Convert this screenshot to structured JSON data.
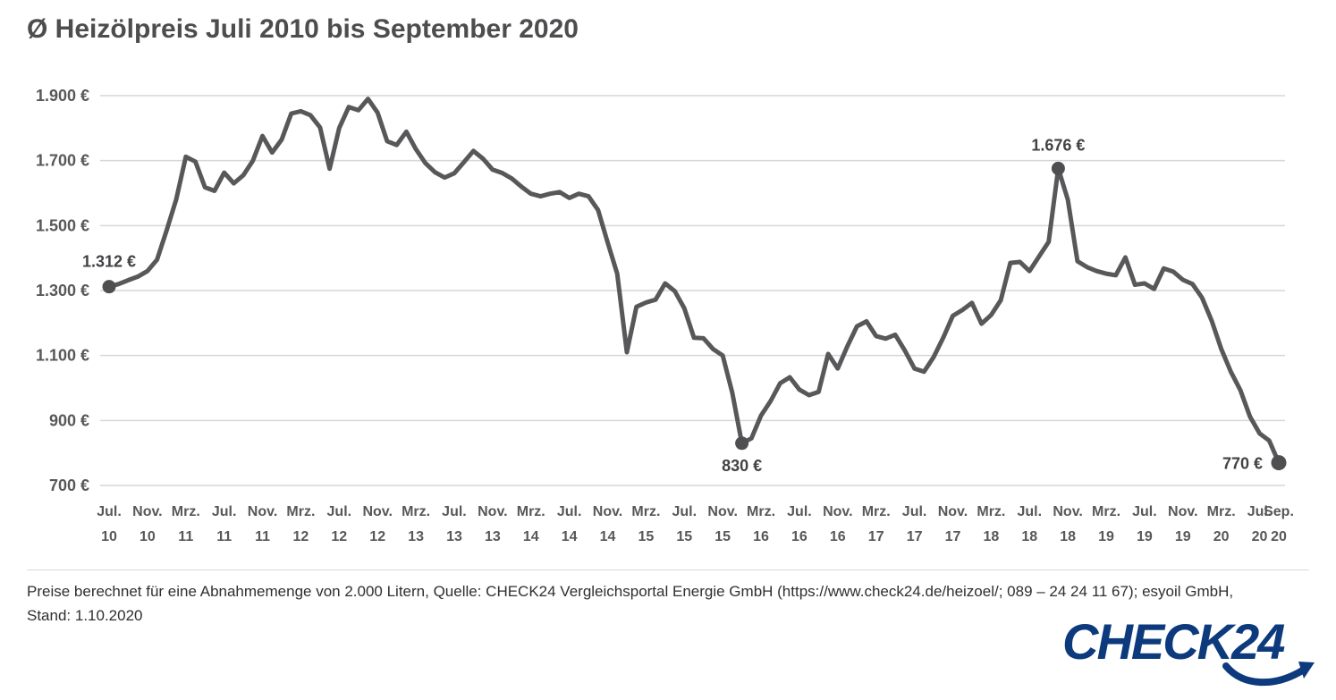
{
  "header": {
    "title": "Ø Heizölpreis Juli 2010 bis September 2020"
  },
  "chart_data": {
    "type": "line",
    "title": "Ø Heizölpreis Juli 2010 bis September 2020",
    "unit": "€",
    "x_monthly_from": "Juli 2010",
    "x_monthly_to": "September 2020",
    "ylim": [
      700,
      1900
    ],
    "y_tick_step": 200,
    "grid": true,
    "legend": false,
    "line_color": "#58585a",
    "values": [
      1312,
      1320,
      1332,
      1343,
      1360,
      1395,
      1485,
      1580,
      1712,
      1697,
      1618,
      1607,
      1663,
      1630,
      1655,
      1700,
      1776,
      1725,
      1765,
      1845,
      1852,
      1840,
      1802,
      1675,
      1800,
      1865,
      1855,
      1890,
      1848,
      1760,
      1748,
      1789,
      1735,
      1692,
      1664,
      1648,
      1661,
      1695,
      1730,
      1706,
      1672,
      1662,
      1645,
      1620,
      1598,
      1590,
      1598,
      1603,
      1585,
      1598,
      1590,
      1548,
      1448,
      1352,
      1110,
      1250,
      1263,
      1272,
      1322,
      1298,
      1245,
      1155,
      1153,
      1120,
      1100,
      985,
      830,
      845,
      915,
      960,
      1015,
      1033,
      995,
      978,
      988,
      1105,
      1060,
      1128,
      1190,
      1205,
      1160,
      1152,
      1164,
      1115,
      1060,
      1050,
      1095,
      1155,
      1222,
      1240,
      1262,
      1198,
      1225,
      1270,
      1385,
      1388,
      1360,
      1405,
      1450,
      1676,
      1580,
      1390,
      1372,
      1360,
      1352,
      1347,
      1402,
      1318,
      1322,
      1305,
      1368,
      1358,
      1333,
      1320,
      1278,
      1207,
      1120,
      1050,
      993,
      912,
      860,
      838,
      770
    ],
    "x_ticks": [
      {
        "index": 0,
        "month": "Jul.",
        "year": "10"
      },
      {
        "index": 4,
        "month": "Nov.",
        "year": "10"
      },
      {
        "index": 8,
        "month": "Mrz.",
        "year": "11"
      },
      {
        "index": 12,
        "month": "Jul.",
        "year": "11"
      },
      {
        "index": 16,
        "month": "Nov.",
        "year": "11"
      },
      {
        "index": 20,
        "month": "Mrz.",
        "year": "12"
      },
      {
        "index": 24,
        "month": "Jul.",
        "year": "12"
      },
      {
        "index": 28,
        "month": "Nov.",
        "year": "12"
      },
      {
        "index": 32,
        "month": "Mrz.",
        "year": "13"
      },
      {
        "index": 36,
        "month": "Jul.",
        "year": "13"
      },
      {
        "index": 40,
        "month": "Nov.",
        "year": "13"
      },
      {
        "index": 44,
        "month": "Mrz.",
        "year": "14"
      },
      {
        "index": 48,
        "month": "Jul.",
        "year": "14"
      },
      {
        "index": 52,
        "month": "Nov.",
        "year": "14"
      },
      {
        "index": 56,
        "month": "Mrz.",
        "year": "15"
      },
      {
        "index": 60,
        "month": "Jul.",
        "year": "15"
      },
      {
        "index": 64,
        "month": "Nov.",
        "year": "15"
      },
      {
        "index": 68,
        "month": "Mrz.",
        "year": "16"
      },
      {
        "index": 72,
        "month": "Jul.",
        "year": "16"
      },
      {
        "index": 76,
        "month": "Nov.",
        "year": "16"
      },
      {
        "index": 80,
        "month": "Mrz.",
        "year": "17"
      },
      {
        "index": 84,
        "month": "Jul.",
        "year": "17"
      },
      {
        "index": 88,
        "month": "Nov.",
        "year": "17"
      },
      {
        "index": 92,
        "month": "Mrz.",
        "year": "18"
      },
      {
        "index": 96,
        "month": "Jul.",
        "year": "18"
      },
      {
        "index": 100,
        "month": "Nov.",
        "year": "18"
      },
      {
        "index": 104,
        "month": "Mrz.",
        "year": "19"
      },
      {
        "index": 108,
        "month": "Jul.",
        "year": "19"
      },
      {
        "index": 112,
        "month": "Nov.",
        "year": "19"
      },
      {
        "index": 116,
        "month": "Mrz.",
        "year": "20"
      },
      {
        "index": 120,
        "month": "Jul.",
        "year": "20"
      },
      {
        "index": 122,
        "month": "Sep.",
        "year": "20"
      }
    ],
    "annotations": [
      {
        "label": "1.312 €",
        "month_index": 0,
        "value": 1312,
        "placement": "above-left"
      },
      {
        "label": "830 €",
        "month_index": 66,
        "value": 830,
        "placement": "below"
      },
      {
        "label": "1.676 €",
        "month_index": 99,
        "value": 1676,
        "placement": "above"
      },
      {
        "label": "770 €",
        "month_index": 122,
        "value": 770,
        "placement": "left"
      }
    ]
  },
  "footer": {
    "line1": "Preise berechnet für eine Abnahmemenge von 2.000 Litern, Quelle: CHECK24 Vergleichsportal Energie GmbH (https://www.check24.de/heizoel/; 089 – 24 24 11 67); esyoil GmbH,",
    "line2": "Stand: 1.10.2020"
  },
  "logo": {
    "text": "CHECK24",
    "color": "#0d3a7d"
  }
}
